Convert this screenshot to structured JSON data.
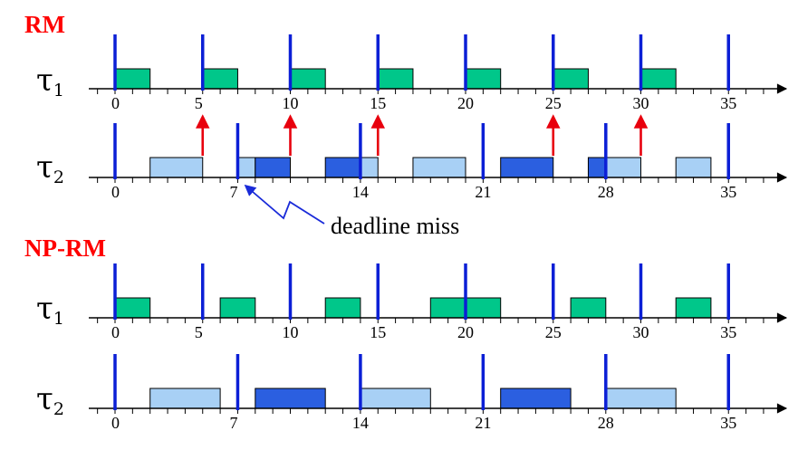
{
  "colors": {
    "release": "#0b1fd6",
    "tau1_exec": "#00c78a",
    "tau2_low": "#a8d0f5",
    "tau2_high": "#2b5fe0",
    "preempt_arrow": "#e8000d",
    "annotation_arrow": "#1a2bd9",
    "title": "#ff0000"
  },
  "sections": [
    {
      "key": "rm",
      "title": "RM",
      "rows": [
        {
          "key": "rm-t1",
          "task": "τ",
          "sub": "1",
          "tick_labels": [
            "0",
            "5",
            "10",
            "15",
            "20",
            "25",
            "30",
            "35"
          ],
          "releases": [
            0,
            5,
            10,
            15,
            20,
            25,
            30,
            35
          ],
          "bars": [
            {
              "s": 0,
              "e": 2,
              "c": "tau1_exec"
            },
            {
              "s": 5,
              "e": 7,
              "c": "tau1_exec"
            },
            {
              "s": 10,
              "e": 12,
              "c": "tau1_exec"
            },
            {
              "s": 15,
              "e": 17,
              "c": "tau1_exec"
            },
            {
              "s": 20,
              "e": 22,
              "c": "tau1_exec"
            },
            {
              "s": 25,
              "e": 27,
              "c": "tau1_exec"
            },
            {
              "s": 30,
              "e": 32,
              "c": "tau1_exec"
            }
          ]
        },
        {
          "key": "rm-t2",
          "task": "τ",
          "sub": "2",
          "tick_labels": [
            "0",
            "7",
            "14",
            "21",
            "28",
            "35"
          ],
          "releases": [
            0,
            7,
            14,
            21,
            28,
            35
          ],
          "preempt_arrows": [
            5,
            10,
            15,
            25,
            30
          ],
          "bars": [
            {
              "s": 2,
              "e": 5,
              "c": "tau2_low"
            },
            {
              "s": 7,
              "e": 8,
              "c": "tau2_low"
            },
            {
              "s": 8,
              "e": 10,
              "c": "tau2_high"
            },
            {
              "s": 12,
              "e": 14,
              "c": "tau2_high"
            },
            {
              "s": 14,
              "e": 15,
              "c": "tau2_low"
            },
            {
              "s": 17,
              "e": 20,
              "c": "tau2_low"
            },
            {
              "s": 22,
              "e": 25,
              "c": "tau2_high"
            },
            {
              "s": 27,
              "e": 28,
              "c": "tau2_high"
            },
            {
              "s": 28,
              "e": 30,
              "c": "tau2_low"
            },
            {
              "s": 32,
              "e": 34,
              "c": "tau2_low"
            }
          ]
        }
      ],
      "annotation": {
        "text": "deadline miss",
        "at": 7
      }
    },
    {
      "key": "nprm",
      "title": "NP-RM",
      "rows": [
        {
          "key": "nprm-t1",
          "task": "τ",
          "sub": "1",
          "tick_labels": [
            "0",
            "5",
            "10",
            "15",
            "20",
            "25",
            "30",
            "35"
          ],
          "releases": [
            0,
            5,
            10,
            15,
            20,
            25,
            30,
            35
          ],
          "bars": [
            {
              "s": 0,
              "e": 2,
              "c": "tau1_exec"
            },
            {
              "s": 6,
              "e": 8,
              "c": "tau1_exec"
            },
            {
              "s": 12,
              "e": 14,
              "c": "tau1_exec"
            },
            {
              "s": 18,
              "e": 22,
              "c": "tau1_exec"
            },
            {
              "s": 26,
              "e": 28,
              "c": "tau1_exec"
            },
            {
              "s": 32,
              "e": 34,
              "c": "tau1_exec"
            }
          ]
        },
        {
          "key": "nprm-t2",
          "task": "τ",
          "sub": "2",
          "tick_labels": [
            "0",
            "7",
            "14",
            "21",
            "28",
            "35"
          ],
          "releases": [
            0,
            7,
            14,
            21,
            28,
            35
          ],
          "bars": [
            {
              "s": 2,
              "e": 6,
              "c": "tau2_low"
            },
            {
              "s": 8,
              "e": 12,
              "c": "tau2_high"
            },
            {
              "s": 14,
              "e": 18,
              "c": "tau2_low"
            },
            {
              "s": 22,
              "e": 26,
              "c": "tau2_high"
            },
            {
              "s": 28,
              "e": 32,
              "c": "tau2_low"
            }
          ]
        }
      ]
    }
  ]
}
